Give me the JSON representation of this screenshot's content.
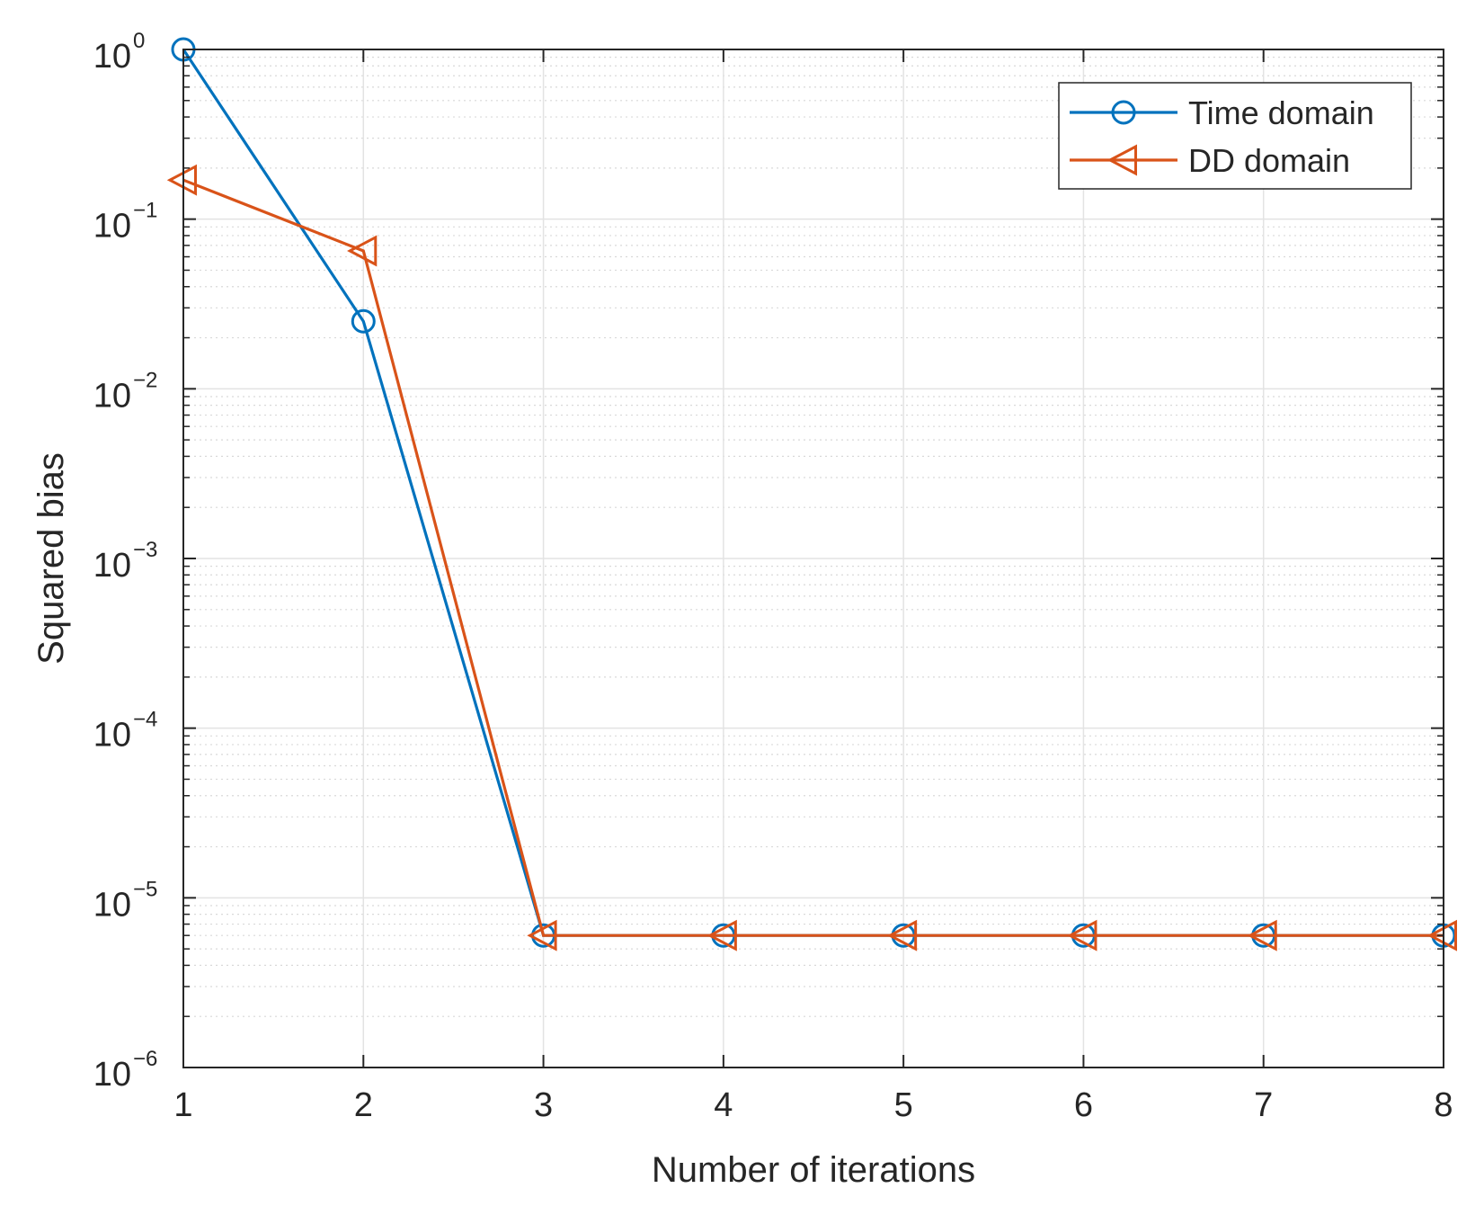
{
  "chart_data": {
    "type": "line",
    "xlabel": "Number of iterations",
    "ylabel": "Squared bias",
    "x_scale": "linear",
    "y_scale": "log",
    "xlim": [
      1,
      8
    ],
    "ylim": [
      1e-06,
      1
    ],
    "x_ticks": [
      1,
      2,
      3,
      4,
      5,
      6,
      7,
      8
    ],
    "y_ticks": [
      {
        "value": 1e-06,
        "base": "10",
        "exp": "−6"
      },
      {
        "value": 1e-05,
        "base": "10",
        "exp": "−5"
      },
      {
        "value": 0.0001,
        "base": "10",
        "exp": "−4"
      },
      {
        "value": 0.001,
        "base": "10",
        "exp": "−3"
      },
      {
        "value": 0.01,
        "base": "10",
        "exp": "−2"
      },
      {
        "value": 0.1,
        "base": "10",
        "exp": "−1"
      },
      {
        "value": 1,
        "base": "10",
        "exp": "0"
      }
    ],
    "grid": true,
    "minor_grid": true,
    "legend_position": "top-right",
    "series": [
      {
        "name": "Time domain",
        "color": "#0072BD",
        "marker": "circle",
        "x": [
          1,
          2,
          3,
          4,
          5,
          6,
          7,
          8
        ],
        "y": [
          1.0,
          0.025,
          6e-06,
          6e-06,
          6e-06,
          6e-06,
          6e-06,
          6e-06
        ]
      },
      {
        "name": "DD domain",
        "color": "#D95319",
        "marker": "triangle-left",
        "x": [
          1,
          2,
          3,
          4,
          5,
          6,
          7,
          8
        ],
        "y": [
          0.17,
          0.065,
          6e-06,
          6e-06,
          6e-06,
          6e-06,
          6e-06,
          6e-06
        ]
      }
    ]
  }
}
